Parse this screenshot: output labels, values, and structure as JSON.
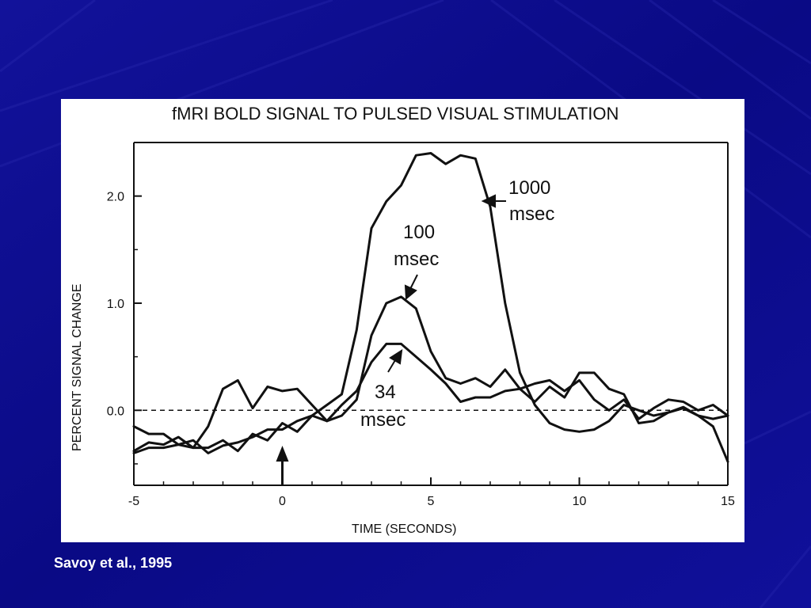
{
  "slide": {
    "background_color": "#0b0b8c",
    "citation": "Savoy et al., 1995"
  },
  "chart_data": {
    "type": "line",
    "title": "fMRI BOLD SIGNAL TO PULSED VISUAL STIMULATION",
    "xlabel": "TIME (SECONDS)",
    "ylabel": "PERCENT SIGNAL CHANGE",
    "xlim": [
      -5,
      15
    ],
    "ylim": [
      -0.7,
      2.5
    ],
    "xticks": [
      -5,
      0,
      5,
      10,
      15
    ],
    "xtick_labels": [
      "-5",
      "0",
      "5",
      "10",
      "15"
    ],
    "yticks": [
      0.0,
      1.0,
      2.0
    ],
    "ytick_labels": [
      "0.0",
      "1.0",
      "2.0"
    ],
    "baseline": 0.0,
    "stimulus_onset": 0,
    "grid": false,
    "legend": "none",
    "annotations": [
      {
        "lines": [
          "1000",
          "msec"
        ],
        "series": "1000 msec"
      },
      {
        "lines": [
          "100",
          "msec"
        ],
        "series": "100 msec"
      },
      {
        "lines": [
          "34",
          "msec"
        ],
        "series": "34 msec"
      }
    ],
    "series": [
      {
        "name": "1000 msec",
        "x": [
          -5,
          -4.5,
          -4,
          -3.5,
          -3,
          -2.5,
          -2,
          -1.5,
          -1,
          -0.5,
          0,
          0.5,
          1,
          1.5,
          2,
          2.5,
          3,
          3.5,
          4,
          4.5,
          5,
          5.5,
          6,
          6.5,
          7,
          7.5,
          8,
          8.5,
          9,
          9.5,
          10,
          10.5,
          11,
          11.5,
          12,
          12.5,
          13,
          13.5,
          14,
          14.5,
          15
        ],
        "y": [
          -0.15,
          -0.22,
          -0.22,
          -0.32,
          -0.28,
          -0.4,
          -0.33,
          -0.3,
          -0.25,
          -0.18,
          -0.18,
          -0.1,
          -0.05,
          0.05,
          0.15,
          0.75,
          1.7,
          1.95,
          2.1,
          2.38,
          2.4,
          2.3,
          2.38,
          2.35,
          1.9,
          1.0,
          0.35,
          0.05,
          -0.12,
          -0.18,
          -0.2,
          -0.18,
          -0.1,
          0.05,
          0.0,
          -0.05,
          -0.02,
          0.02,
          -0.05,
          -0.15,
          -0.48
        ]
      },
      {
        "name": "100 msec",
        "x": [
          -5,
          -4.5,
          -4,
          -3.5,
          -3,
          -2.5,
          -2,
          -1.5,
          -1,
          -0.5,
          0,
          0.5,
          1,
          1.5,
          2,
          2.5,
          3,
          3.5,
          4,
          4.5,
          5,
          5.5,
          6,
          6.5,
          7,
          7.5,
          8,
          8.5,
          9,
          9.5,
          10,
          10.5,
          11,
          11.5,
          12,
          12.5,
          13,
          13.5,
          14,
          14.5,
          15
        ],
        "y": [
          -0.4,
          -0.35,
          -0.35,
          -0.32,
          -0.35,
          -0.15,
          0.2,
          0.28,
          0.02,
          0.22,
          0.18,
          0.2,
          0.05,
          -0.1,
          -0.05,
          0.1,
          0.7,
          1.0,
          1.06,
          0.95,
          0.55,
          0.3,
          0.25,
          0.3,
          0.22,
          0.38,
          0.2,
          0.08,
          0.22,
          0.12,
          0.35,
          0.35,
          0.2,
          0.15,
          -0.12,
          -0.1,
          -0.02,
          0.03,
          -0.05,
          -0.08,
          -0.05
        ]
      },
      {
        "name": "34 msec",
        "x": [
          -5,
          -4.5,
          -4,
          -3.5,
          -3,
          -2.5,
          -2,
          -1.5,
          -1,
          -0.5,
          0,
          0.5,
          1,
          1.5,
          2,
          2.5,
          3,
          3.5,
          4,
          4.5,
          5,
          5.5,
          6,
          6.5,
          7,
          7.5,
          8,
          8.5,
          9,
          9.5,
          10,
          10.5,
          11,
          11.5,
          12,
          12.5,
          13,
          13.5,
          14,
          14.5,
          15
        ],
        "y": [
          -0.38,
          -0.3,
          -0.32,
          -0.25,
          -0.35,
          -0.35,
          -0.28,
          -0.38,
          -0.22,
          -0.28,
          -0.12,
          -0.2,
          -0.05,
          -0.1,
          0.05,
          0.18,
          0.45,
          0.62,
          0.62,
          0.5,
          0.38,
          0.25,
          0.08,
          0.12,
          0.12,
          0.18,
          0.2,
          0.25,
          0.28,
          0.18,
          0.28,
          0.1,
          0.0,
          0.1,
          -0.08,
          0.02,
          0.1,
          0.08,
          0.0,
          0.05,
          -0.05
        ]
      }
    ]
  }
}
